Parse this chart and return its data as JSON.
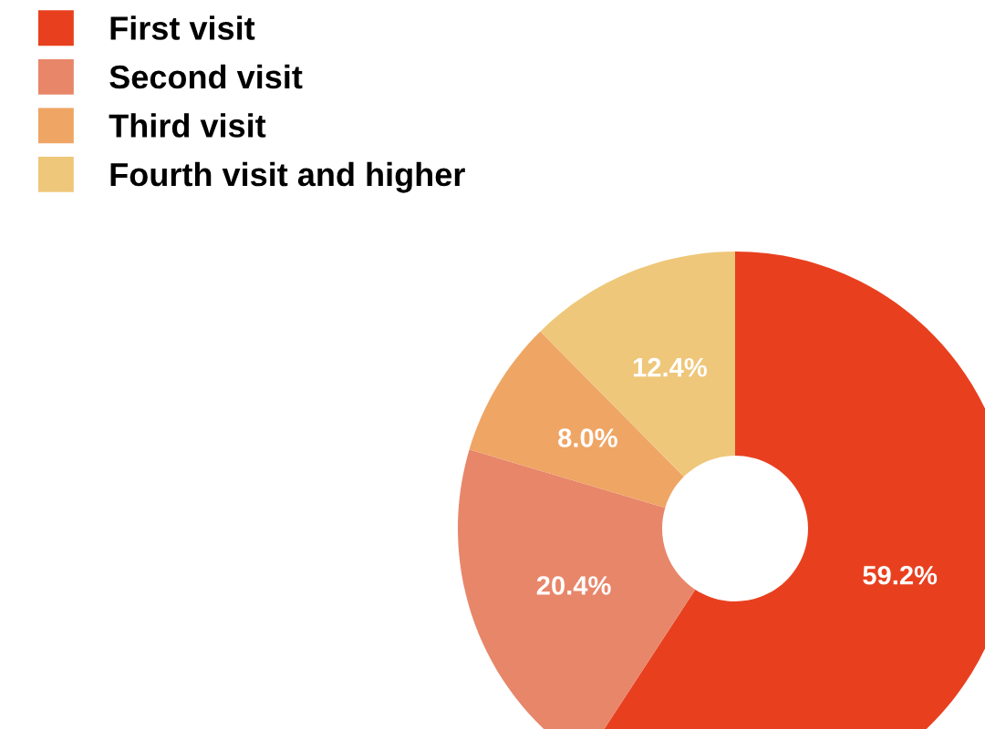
{
  "chart_data": {
    "type": "donut",
    "categories": [
      "First visit",
      "Second visit",
      "Third visit",
      "Fourth visit and higher"
    ],
    "values": [
      59.2,
      20.4,
      8.0,
      12.4
    ],
    "colors": [
      "#e8401f",
      "#e8866a",
      "#efa564",
      "#efc77a"
    ],
    "value_labels": [
      "59.2%",
      "20.4%",
      "8.0%",
      "12.4%"
    ],
    "legend": "top left"
  }
}
